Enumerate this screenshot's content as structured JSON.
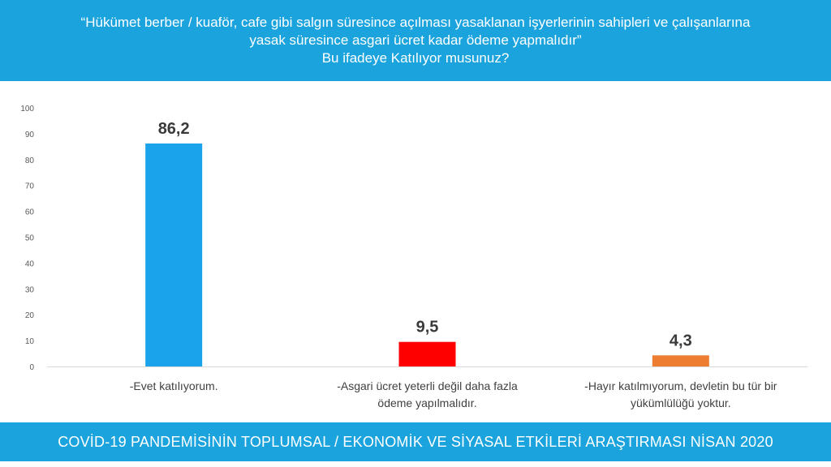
{
  "header": {
    "line1": "“Hükümet berber / kuaför, cafe gibi salgın süresince açılması yasaklanan işyerlerinin sahipleri ve çalışanlarına",
    "line2": "yasak süresince asgari ücret kadar ödeme yapmalıdır”",
    "line3": "Bu ifadeye Katılıyor musunuz?"
  },
  "footer": {
    "text": "COVİD-19 PANDEMİSİNİN TOPLUMSAL / EKONOMİK VE SİYASAL ETKİLERİ ARAŞTIRMASI NİSAN 2020"
  },
  "colors": {
    "header_bg": "#1aa3dd",
    "footer_bg": "#1aa3dd"
  },
  "chart_data": {
    "type": "bar",
    "categories": [
      "-Evet katılıyorum.",
      "-Asgari ücret yeterli değil daha fazla ödeme yapılmalıdır.",
      "-Hayır katılmıyorum, devletin bu tür bir yükümlülüğü yoktur."
    ],
    "category_lines": [
      [
        "-Evet katılıyorum."
      ],
      [
        "-Asgari ücret yeterli değil daha fazla",
        "ödeme yapılmalıdır."
      ],
      [
        "-Hayır katılmıyorum, devletin bu tür bir",
        "yükümlülüğü yoktur."
      ]
    ],
    "values": [
      86.2,
      9.5,
      4.3
    ],
    "data_labels": [
      "86,2",
      "9,5",
      "4,3"
    ],
    "bar_colors": [
      "#1aa3ea",
      "#ff0000",
      "#ed7d31"
    ],
    "ylim": [
      0,
      100
    ],
    "yticks": [
      0,
      10,
      20,
      30,
      40,
      50,
      60,
      70,
      80,
      90,
      100
    ],
    "grid": false
  }
}
